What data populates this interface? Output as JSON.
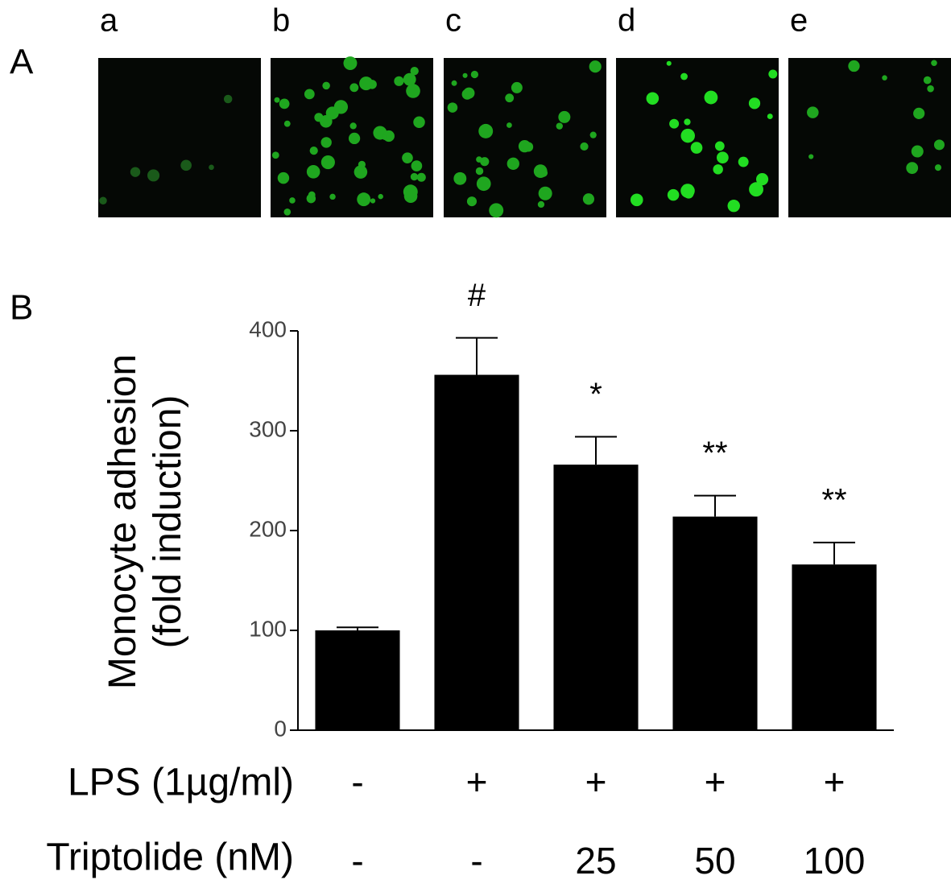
{
  "figure": {
    "panel_labels": [
      "A",
      "B"
    ],
    "image_labels": [
      "a",
      "b",
      "c",
      "d",
      "e"
    ]
  },
  "chart_data": {
    "type": "bar",
    "ylabel": [
      "Monocyte adhesion",
      "(fold induction)"
    ],
    "values": [
      100,
      356,
      266,
      214,
      166
    ],
    "errors": [
      3,
      37,
      28,
      21,
      22
    ],
    "annotations": [
      null,
      "#",
      "*",
      "**",
      "**"
    ],
    "color": "#000000",
    "ylim": [
      0,
      400
    ],
    "yticks": [
      0,
      100,
      200,
      300,
      400
    ],
    "rows": [
      {
        "label": "LPS (1µg/ml)",
        "values": [
          "-",
          "+",
          "+",
          "+",
          "+"
        ]
      },
      {
        "label": "Triptolide (nM)",
        "values": [
          "-",
          "-",
          "25",
          "50",
          "100"
        ]
      }
    ]
  }
}
